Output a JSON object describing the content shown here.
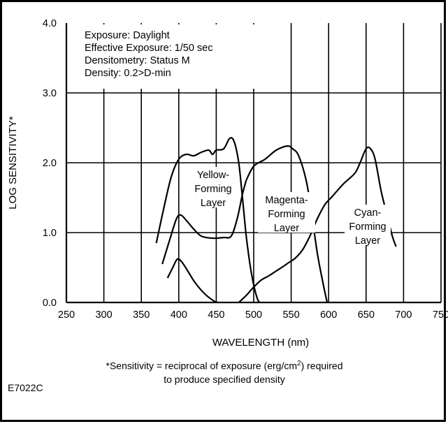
{
  "figure_code": "E7022C",
  "conditions": [
    "Exposure: Daylight",
    "Effective Exposure: 1/50 sec",
    "Densitometry: Status M",
    "Density: 0.2>D-min"
  ],
  "footnote": {
    "line1_prefix": "*Sensitivity = reciprocal of exposure (erg/cm",
    "line1_sup": "2",
    "line1_suffix": ") required",
    "line2": "to produce specified density"
  },
  "chart_data": {
    "type": "line",
    "title": "",
    "xlabel": "WAVELENGTH (nm)",
    "ylabel": "LOG SENSITIVITY*",
    "xlim": [
      250,
      750
    ],
    "ylim": [
      0.0,
      4.0
    ],
    "x_ticks": [
      "250",
      "300",
      "350",
      "400",
      "450",
      "500",
      "550",
      "600",
      "650",
      "700",
      "750"
    ],
    "y_ticks": [
      "0.0",
      "1.0",
      "2.0",
      "3.0",
      "4.0"
    ],
    "grid": true,
    "series": [
      {
        "name": "Yellow-Forming Layer",
        "label_lines": [
          "Yellow-",
          "Forming",
          "Layer"
        ],
        "curves": [
          [
            [
              370,
              0.85
            ],
            [
              380,
              1.35
            ],
            [
              390,
              1.8
            ],
            [
              400,
              2.05
            ],
            [
              410,
              2.12
            ],
            [
              420,
              2.1
            ],
            [
              430,
              2.15
            ],
            [
              440,
              2.18
            ],
            [
              445,
              2.12
            ],
            [
              450,
              2.18
            ],
            [
              460,
              2.2
            ],
            [
              468,
              2.35
            ],
            [
              474,
              2.3
            ],
            [
              480,
              2.0
            ],
            [
              485,
              1.5
            ],
            [
              490,
              0.95
            ],
            [
              495,
              0.55
            ],
            [
              500,
              0.25
            ],
            [
              505,
              0.05
            ],
            [
              508,
              0.0
            ]
          ],
          [
            [
              378,
              0.55
            ],
            [
              388,
              0.9
            ],
            [
              397,
              1.2
            ],
            [
              403,
              1.25
            ],
            [
              412,
              1.15
            ],
            [
              420,
              1.05
            ],
            [
              430,
              0.95
            ],
            [
              445,
              0.92
            ],
            [
              460,
              0.93
            ],
            [
              470,
              0.95
            ],
            [
              478,
              1.2
            ],
            [
              485,
              1.55
            ],
            [
              490,
              1.75
            ]
          ],
          [
            [
              385,
              0.35
            ],
            [
              392,
              0.5
            ],
            [
              398,
              0.62
            ],
            [
              404,
              0.58
            ],
            [
              412,
              0.45
            ],
            [
              422,
              0.28
            ],
            [
              435,
              0.12
            ],
            [
              447,
              0.02
            ],
            [
              452,
              0.0
            ]
          ]
        ]
      },
      {
        "name": "Magenta-Forming Layer",
        "label_lines": [
          "Magenta-",
          "Forming",
          "Layer"
        ],
        "curves": [
          [
            [
              490,
              1.75
            ],
            [
              500,
              1.95
            ],
            [
              515,
              2.05
            ],
            [
              530,
              2.18
            ],
            [
              545,
              2.24
            ],
            [
              552,
              2.2
            ],
            [
              560,
              2.1
            ],
            [
              570,
              1.75
            ],
            [
              577,
              1.3
            ],
            [
              585,
              0.7
            ],
            [
              593,
              0.25
            ],
            [
              598,
              0.0
            ]
          ]
        ]
      },
      {
        "name": "Cyan-Forming Layer",
        "label_lines": [
          "Cyan-",
          "Forming",
          "Layer"
        ],
        "curves": [
          [
            [
              480,
              0.0
            ],
            [
              490,
              0.1
            ],
            [
              500,
              0.22
            ],
            [
              510,
              0.32
            ],
            [
              520,
              0.38
            ],
            [
              530,
              0.45
            ],
            [
              540,
              0.52
            ],
            [
              548,
              0.58
            ],
            [
              555,
              0.63
            ],
            [
              565,
              0.75
            ],
            [
              575,
              0.95
            ],
            [
              585,
              1.2
            ],
            [
              595,
              1.4
            ],
            [
              605,
              1.52
            ],
            [
              620,
              1.7
            ],
            [
              635,
              1.85
            ],
            [
              642,
              2.0
            ],
            [
              650,
              2.2
            ],
            [
              656,
              2.2
            ],
            [
              662,
              2.05
            ],
            [
              670,
              1.6
            ],
            [
              678,
              1.25
            ],
            [
              685,
              0.95
            ],
            [
              690,
              0.8
            ]
          ]
        ]
      }
    ]
  }
}
